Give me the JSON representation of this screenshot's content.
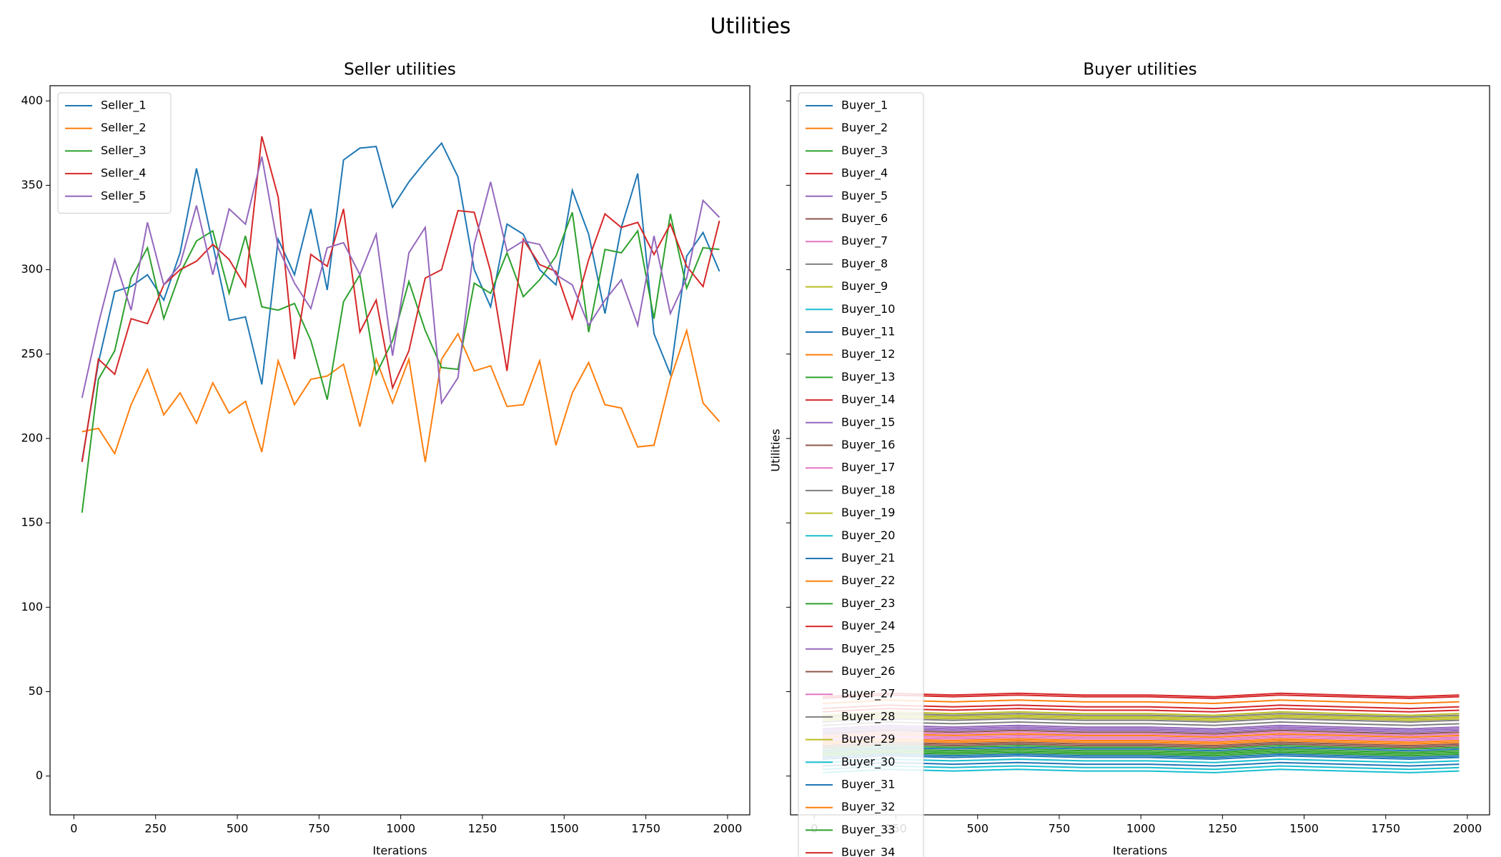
{
  "title": "Utilities",
  "chart_data": [
    {
      "type": "line",
      "title": "Seller utilities",
      "x_label": "Iterations",
      "y_label": "Utilities",
      "legend": "upper left",
      "xlim": [
        -73,
        2068
      ],
      "ylim": [
        -23,
        409
      ],
      "xticks": [
        0,
        250,
        500,
        750,
        1000,
        1250,
        1500,
        1750,
        2000
      ],
      "yticks": [
        0,
        50,
        100,
        150,
        200,
        250,
        300,
        350,
        400
      ],
      "x": [
        25,
        75,
        125,
        175,
        225,
        275,
        325,
        375,
        425,
        475,
        525,
        575,
        625,
        675,
        725,
        775,
        825,
        875,
        925,
        975,
        1025,
        1075,
        1125,
        1175,
        1225,
        1275,
        1325,
        1375,
        1425,
        1475,
        1525,
        1575,
        1625,
        1675,
        1725,
        1775,
        1825,
        1875,
        1925,
        1975
      ],
      "series": [
        {
          "name": "Seller_1",
          "color": "#1f77b4",
          "values": [
            187,
            245,
            287,
            290,
            297,
            282,
            310,
            360,
            315,
            270,
            272,
            232,
            318,
            297,
            336,
            288,
            365,
            372,
            373,
            337,
            352,
            364,
            375,
            355,
            300,
            278,
            327,
            321,
            300,
            291,
            347,
            321,
            274,
            325,
            357,
            262,
            238,
            308,
            322,
            299
          ]
        },
        {
          "name": "Seller_2",
          "color": "#ff7f0e",
          "values": [
            204,
            206,
            191,
            220,
            241,
            214,
            227,
            209,
            233,
            215,
            222,
            192,
            246,
            220,
            235,
            237,
            244,
            207,
            247,
            221,
            247,
            186,
            247,
            262,
            240,
            243,
            219,
            220,
            246,
            196,
            227,
            245,
            220,
            218,
            195,
            196,
            235,
            264,
            221,
            210
          ]
        },
        {
          "name": "Seller_3",
          "color": "#2ca02c",
          "values": [
            156,
            235,
            252,
            295,
            313,
            271,
            298,
            317,
            323,
            286,
            320,
            278,
            276,
            280,
            258,
            223,
            281,
            297,
            238,
            258,
            293,
            264,
            242,
            241,
            292,
            286,
            310,
            284,
            294,
            308,
            334,
            263,
            312,
            310,
            323,
            271,
            333,
            289,
            313,
            312
          ]
        },
        {
          "name": "Seller_4",
          "color": "#d62728",
          "values": [
            186,
            247,
            238,
            271,
            268,
            291,
            300,
            305,
            315,
            306,
            290,
            379,
            343,
            247,
            309,
            302,
            336,
            263,
            282,
            230,
            252,
            295,
            300,
            335,
            334,
            299,
            240,
            318,
            303,
            299,
            271,
            306,
            333,
            325,
            328,
            309,
            327,
            302,
            290,
            329
          ]
        },
        {
          "name": "Seller_5",
          "color": "#9467bd",
          "values": [
            224,
            268,
            306,
            276,
            328,
            291,
            303,
            338,
            297,
            336,
            327,
            367,
            313,
            292,
            277,
            313,
            316,
            297,
            321,
            249,
            310,
            325,
            221,
            236,
            315,
            352,
            311,
            317,
            315,
            297,
            291,
            267,
            282,
            294,
            267,
            320,
            274,
            295,
            341,
            331
          ]
        }
      ]
    },
    {
      "type": "line",
      "title": "Buyer utilities",
      "x_label": "Iterations",
      "y_label": "Utilities",
      "legend": "upper left",
      "xlim": [
        -73,
        2068
      ],
      "ylim": [
        -23,
        409
      ],
      "xticks": [
        0,
        250,
        500,
        750,
        1000,
        1250,
        1500,
        1750,
        2000
      ],
      "yticks": [
        0,
        50,
        100,
        150,
        200,
        250,
        300,
        350,
        400
      ],
      "x": [
        25,
        225,
        425,
        625,
        825,
        1025,
        1225,
        1425,
        1625,
        1825,
        1975
      ],
      "series": [
        {
          "name": "Buyer_1",
          "color": "#1f77b4",
          "values": [
            15,
            17,
            16,
            17,
            16,
            16,
            15,
            17,
            16,
            15,
            16
          ]
        },
        {
          "name": "Buyer_2",
          "color": "#ff7f0e",
          "values": [
            43,
            45,
            44,
            45,
            44,
            44,
            43,
            45,
            44,
            43,
            44
          ]
        },
        {
          "name": "Buyer_3",
          "color": "#2ca02c",
          "values": [
            13,
            15,
            14,
            15,
            14,
            14,
            13,
            15,
            14,
            13,
            14
          ]
        },
        {
          "name": "Buyer_4",
          "color": "#d62728",
          "values": [
            46,
            48,
            47,
            48,
            47,
            47,
            46,
            48,
            47,
            46,
            47
          ]
        },
        {
          "name": "Buyer_5",
          "color": "#9467bd",
          "values": [
            27,
            29,
            28,
            29,
            28,
            28,
            27,
            29,
            28,
            27,
            28
          ]
        },
        {
          "name": "Buyer_6",
          "color": "#8c564b",
          "values": [
            18,
            20,
            19,
            20,
            19,
            19,
            18,
            20,
            19,
            18,
            19
          ]
        },
        {
          "name": "Buyer_7",
          "color": "#e377c2",
          "values": [
            22,
            24,
            23,
            24,
            23,
            23,
            22,
            24,
            23,
            22,
            23
          ]
        },
        {
          "name": "Buyer_8",
          "color": "#7f7f7f",
          "values": [
            35,
            37,
            36,
            37,
            36,
            36,
            35,
            37,
            36,
            35,
            36
          ]
        },
        {
          "name": "Buyer_9",
          "color": "#bcbd22",
          "values": [
            33,
            35,
            34,
            35,
            34,
            34,
            33,
            35,
            34,
            33,
            34
          ]
        },
        {
          "name": "Buyer_10",
          "color": "#17becf",
          "values": [
            8,
            10,
            9,
            10,
            9,
            9,
            8,
            10,
            9,
            8,
            9
          ]
        },
        {
          "name": "Buyer_11",
          "color": "#1f77b4",
          "values": [
            10,
            12,
            11,
            12,
            11,
            11,
            10,
            12,
            11,
            10,
            11
          ]
        },
        {
          "name": "Buyer_12",
          "color": "#ff7f0e",
          "values": [
            20,
            22,
            21,
            22,
            21,
            21,
            20,
            22,
            21,
            20,
            21
          ]
        },
        {
          "name": "Buyer_13",
          "color": "#2ca02c",
          "values": [
            12,
            14,
            13,
            14,
            13,
            13,
            12,
            14,
            13,
            12,
            13
          ]
        },
        {
          "name": "Buyer_14",
          "color": "#d62728",
          "values": [
            40,
            42,
            41,
            42,
            41,
            41,
            40,
            42,
            41,
            40,
            41
          ]
        },
        {
          "name": "Buyer_15",
          "color": "#9467bd",
          "values": [
            28,
            30,
            29,
            30,
            29,
            29,
            28,
            30,
            29,
            28,
            29
          ]
        },
        {
          "name": "Buyer_16",
          "color": "#8c564b",
          "values": [
            25,
            27,
            26,
            27,
            26,
            26,
            25,
            27,
            26,
            25,
            26
          ]
        },
        {
          "name": "Buyer_17",
          "color": "#e377c2",
          "values": [
            24,
            26,
            25,
            26,
            25,
            25,
            24,
            26,
            25,
            24,
            25
          ]
        },
        {
          "name": "Buyer_18",
          "color": "#7f7f7f",
          "values": [
            30,
            32,
            31,
            32,
            31,
            31,
            30,
            32,
            31,
            30,
            31
          ]
        },
        {
          "name": "Buyer_19",
          "color": "#bcbd22",
          "values": [
            36,
            38,
            37,
            38,
            37,
            37,
            36,
            38,
            37,
            36,
            37
          ]
        },
        {
          "name": "Buyer_20",
          "color": "#17becf",
          "values": [
            4,
            6,
            5,
            6,
            5,
            5,
            4,
            6,
            5,
            4,
            5
          ]
        },
        {
          "name": "Buyer_21",
          "color": "#1f77b4",
          "values": [
            11,
            13,
            12,
            13,
            12,
            12,
            11,
            13,
            12,
            11,
            12
          ]
        },
        {
          "name": "Buyer_22",
          "color": "#ff7f0e",
          "values": [
            19,
            21,
            20,
            21,
            20,
            20,
            19,
            21,
            20,
            19,
            20
          ]
        },
        {
          "name": "Buyer_23",
          "color": "#2ca02c",
          "values": [
            14,
            16,
            15,
            16,
            15,
            15,
            14,
            16,
            15,
            14,
            15
          ]
        },
        {
          "name": "Buyer_24",
          "color": "#d62728",
          "values": [
            38,
            40,
            39,
            40,
            39,
            39,
            38,
            40,
            39,
            38,
            39
          ]
        },
        {
          "name": "Buyer_25",
          "color": "#9467bd",
          "values": [
            26,
            28,
            27,
            28,
            27,
            27,
            26,
            28,
            27,
            26,
            27
          ]
        },
        {
          "name": "Buyer_26",
          "color": "#8c564b",
          "values": [
            17,
            19,
            18,
            19,
            18,
            18,
            17,
            19,
            18,
            17,
            18
          ]
        },
        {
          "name": "Buyer_27",
          "color": "#e377c2",
          "values": [
            21,
            23,
            22,
            23,
            22,
            22,
            21,
            23,
            22,
            21,
            22
          ]
        },
        {
          "name": "Buyer_28",
          "color": "#7f7f7f",
          "values": [
            32,
            34,
            33,
            34,
            33,
            33,
            32,
            34,
            33,
            32,
            33
          ]
        },
        {
          "name": "Buyer_29",
          "color": "#bcbd22",
          "values": [
            34,
            36,
            35,
            36,
            35,
            35,
            34,
            36,
            35,
            34,
            35
          ]
        },
        {
          "name": "Buyer_30",
          "color": "#17becf",
          "values": [
            2,
            4,
            3,
            4,
            3,
            3,
            2,
            4,
            3,
            2,
            3
          ]
        },
        {
          "name": "Buyer_31",
          "color": "#1f77b4",
          "values": [
            6,
            8,
            7,
            8,
            7,
            7,
            6,
            8,
            7,
            6,
            7
          ]
        },
        {
          "name": "Buyer_32",
          "color": "#ff7f0e",
          "values": [
            23,
            25,
            24,
            25,
            24,
            24,
            23,
            25,
            24,
            23,
            24
          ]
        },
        {
          "name": "Buyer_33",
          "color": "#2ca02c",
          "values": [
            16,
            18,
            17,
            18,
            17,
            17,
            16,
            18,
            17,
            16,
            17
          ]
        },
        {
          "name": "Buyer_34",
          "color": "#d62728",
          "values": [
            47,
            49,
            48,
            49,
            48,
            48,
            47,
            49,
            48,
            47,
            48
          ]
        }
      ]
    }
  ]
}
